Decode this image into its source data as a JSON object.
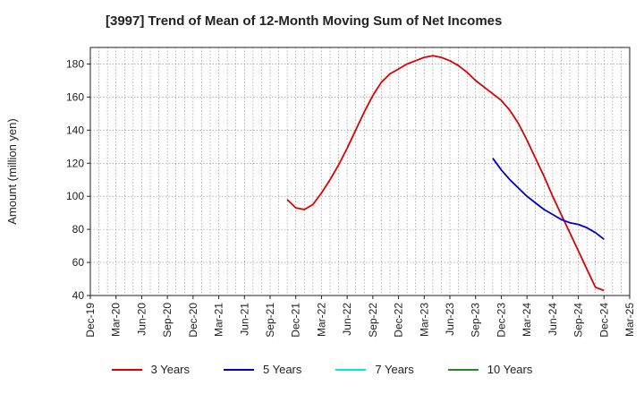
{
  "chart_data": {
    "type": "line",
    "title": "[3997]  Trend of Mean of 12-Month Moving Sum of Net Incomes",
    "xlabel": "",
    "ylabel": "Amount (million yen)",
    "ylim": [
      40,
      190
    ],
    "yticks": [
      40,
      60,
      80,
      100,
      120,
      140,
      160,
      180
    ],
    "x_tick_labels": [
      "Dec-19",
      "Mar-20",
      "Jun-20",
      "Sep-20",
      "Dec-20",
      "Mar-21",
      "Jun-21",
      "Sep-21",
      "Dec-21",
      "Mar-22",
      "Jun-22",
      "Sep-22",
      "Dec-22",
      "Mar-23",
      "Jun-23",
      "Sep-23",
      "Dec-23",
      "Mar-24",
      "Jun-24",
      "Sep-24",
      "Dec-24",
      "Mar-25"
    ],
    "x_range": [
      "2019-12",
      "2025-03"
    ],
    "grid": true,
    "legend_position": "bottom",
    "series": [
      {
        "name": "3 Years",
        "color": "#dd0000",
        "points": [
          [
            "2021-11",
            98
          ],
          [
            "2021-12",
            93
          ],
          [
            "2022-01",
            92
          ],
          [
            "2022-02",
            95
          ],
          [
            "2022-03",
            102
          ],
          [
            "2022-04",
            110
          ],
          [
            "2022-05",
            119
          ],
          [
            "2022-06",
            129
          ],
          [
            "2022-07",
            140
          ],
          [
            "2022-08",
            151
          ],
          [
            "2022-09",
            161
          ],
          [
            "2022-10",
            169
          ],
          [
            "2022-11",
            174
          ],
          [
            "2022-12",
            177
          ],
          [
            "2023-01",
            180
          ],
          [
            "2023-02",
            182
          ],
          [
            "2023-03",
            184
          ],
          [
            "2023-04",
            185
          ],
          [
            "2023-05",
            184
          ],
          [
            "2023-06",
            182
          ],
          [
            "2023-07",
            179
          ],
          [
            "2023-08",
            175
          ],
          [
            "2023-09",
            170
          ],
          [
            "2023-10",
            166
          ],
          [
            "2023-11",
            162
          ],
          [
            "2023-12",
            158
          ],
          [
            "2024-01",
            152
          ],
          [
            "2024-02",
            144
          ],
          [
            "2024-03",
            134
          ],
          [
            "2024-04",
            123
          ],
          [
            "2024-05",
            112
          ],
          [
            "2024-06",
            100
          ],
          [
            "2024-07",
            89
          ],
          [
            "2024-08",
            78
          ],
          [
            "2024-09",
            67
          ],
          [
            "2024-10",
            56
          ],
          [
            "2024-11",
            45
          ],
          [
            "2024-12",
            43
          ]
        ]
      },
      {
        "name": "5 Years",
        "color": "#0000cc",
        "points": [
          [
            "2023-11",
            123
          ],
          [
            "2023-12",
            116
          ],
          [
            "2024-01",
            110
          ],
          [
            "2024-02",
            105
          ],
          [
            "2024-03",
            100
          ],
          [
            "2024-04",
            96
          ],
          [
            "2024-05",
            92
          ],
          [
            "2024-06",
            89
          ],
          [
            "2024-07",
            86
          ],
          [
            "2024-08",
            84
          ],
          [
            "2024-09",
            83
          ],
          [
            "2024-10",
            81
          ],
          [
            "2024-11",
            78
          ],
          [
            "2024-12",
            74
          ]
        ]
      },
      {
        "name": "7 Years",
        "color": "#00e5ee",
        "points": []
      },
      {
        "name": "10 Years",
        "color": "#228b22",
        "points": []
      }
    ]
  }
}
